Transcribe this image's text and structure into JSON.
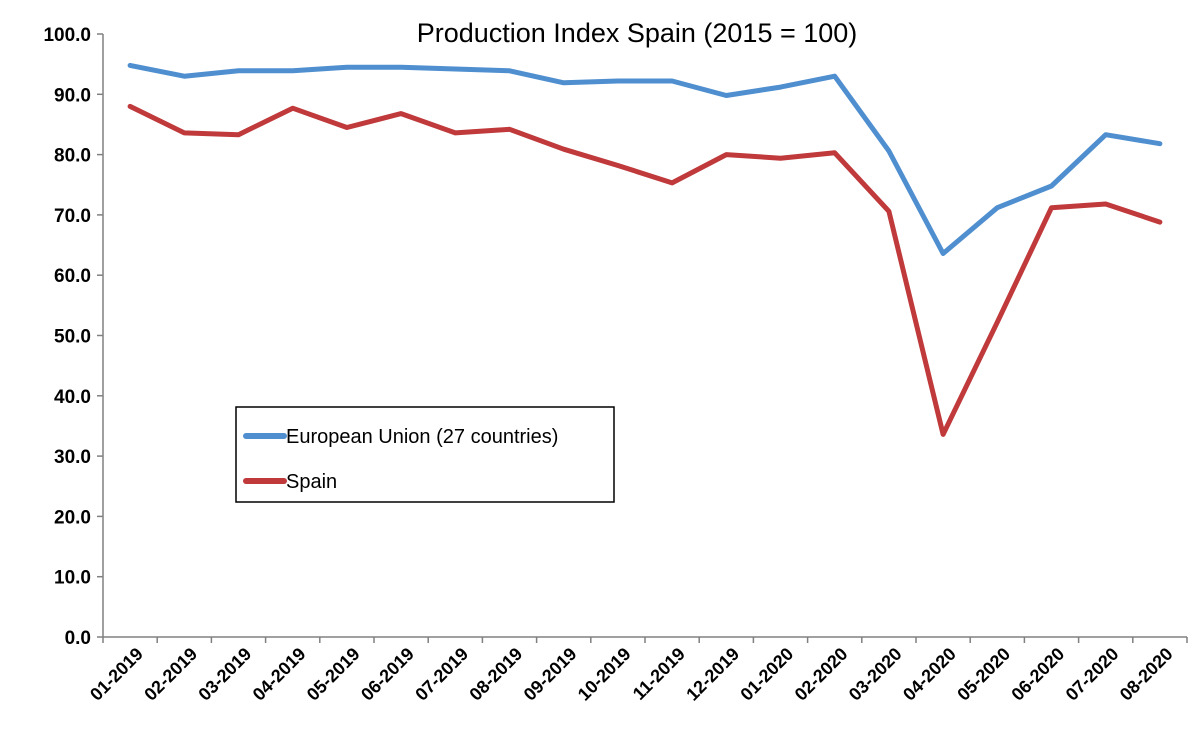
{
  "chart_data": {
    "type": "line",
    "title": "Production Index Spain (2015 = 100)",
    "xlabel": "",
    "ylabel": "",
    "ylim": [
      0,
      100
    ],
    "y_ticks": [
      "0.0",
      "10.0",
      "20.0",
      "30.0",
      "40.0",
      "50.0",
      "60.0",
      "70.0",
      "80.0",
      "90.0",
      "100.0"
    ],
    "grid": false,
    "legend_position": "center-left",
    "categories": [
      "01-2019",
      "02-2019",
      "03-2019",
      "04-2019",
      "05-2019",
      "06-2019",
      "07-2019",
      "08-2019",
      "09-2019",
      "10-2019",
      "11-2019",
      "12-2019",
      "01-2020",
      "02-2020",
      "03-2020",
      "04-2020",
      "05-2020",
      "06-2020",
      "07-2020",
      "08-2020"
    ],
    "series": [
      {
        "name": "European Union (27 countries)",
        "color": "#4f8fd0",
        "values": [
          94.8,
          93.0,
          93.9,
          93.9,
          94.5,
          94.5,
          94.2,
          93.9,
          91.9,
          92.2,
          92.2,
          89.8,
          91.2,
          93.0,
          80.6,
          63.6,
          71.2,
          74.8,
          83.3,
          81.8
        ]
      },
      {
        "name": "Spain",
        "color": "#c0393b",
        "values": [
          88.0,
          83.6,
          83.3,
          87.7,
          84.5,
          86.8,
          83.6,
          84.2,
          80.9,
          78.2,
          75.3,
          80.0,
          79.4,
          80.3,
          70.6,
          33.6,
          52.2,
          71.2,
          71.8,
          68.8
        ]
      }
    ]
  }
}
